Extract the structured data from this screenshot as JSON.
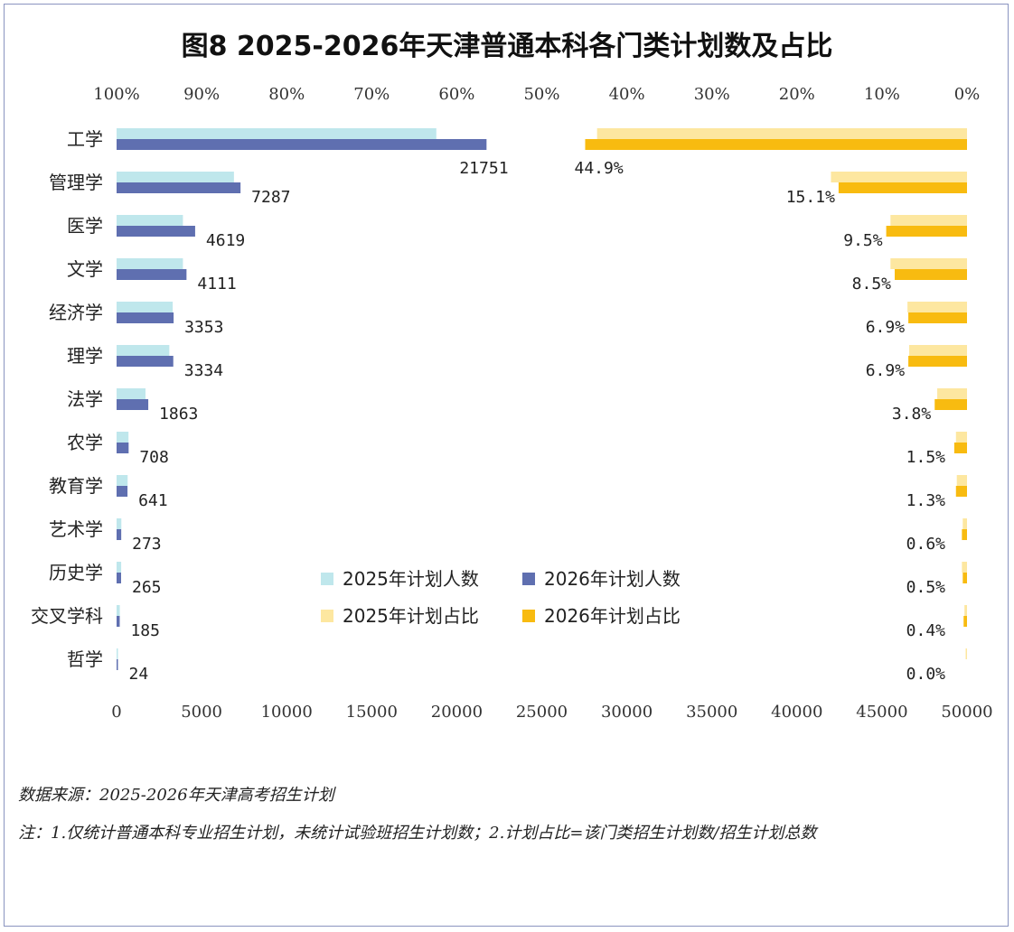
{
  "title": "图8  2025-2026年天津普通本科各门类计划数及占比",
  "source_note": "数据来源：2025-2026年天津高考招生计划",
  "footnote": "注：1.仅统计普通本科专业招生计划，未统计试验班招生计划数；2.计划占比=该门类招生计划数/招生计划总数",
  "colors": {
    "plan_2025": "#bfe7ec",
    "plan_2026": "#5f6fb0",
    "share_2025": "#fde7a0",
    "share_2026": "#f8bb10"
  },
  "chart_data": {
    "type": "bar",
    "orientation": "horizontal",
    "categories": [
      "工学",
      "管理学",
      "医学",
      "文学",
      "经济学",
      "理学",
      "法学",
      "农学",
      "教育学",
      "艺术学",
      "历史学",
      "交叉学科",
      "哲学"
    ],
    "series": [
      {
        "name": "2025年计划人数",
        "axis": "bottom",
        "values": [
          18800,
          6900,
          3900,
          3900,
          3300,
          3100,
          1700,
          700,
          650,
          280,
          270,
          190,
          30
        ]
      },
      {
        "name": "2026年计划人数",
        "axis": "bottom",
        "values": [
          21751,
          7287,
          4619,
          4111,
          3353,
          3334,
          1863,
          708,
          641,
          273,
          265,
          185,
          24
        ],
        "labels": [
          "21751",
          "7287",
          "4619",
          "4111",
          "3353",
          "3334",
          "1863",
          "708",
          "641",
          "273",
          "265",
          "185",
          "24"
        ]
      },
      {
        "name": "2025年计划占比",
        "axis": "top",
        "values": [
          43.5,
          16.0,
          9.0,
          9.0,
          7.0,
          6.8,
          3.5,
          1.3,
          1.2,
          0.5,
          0.6,
          0.3,
          0.1
        ]
      },
      {
        "name": "2026年计划占比",
        "axis": "top",
        "values": [
          44.9,
          15.1,
          9.5,
          8.5,
          6.9,
          6.9,
          3.8,
          1.5,
          1.3,
          0.6,
          0.5,
          0.4,
          0.0
        ],
        "labels": [
          "44.9%",
          "15.1%",
          "9.5%",
          "8.5%",
          "6.9%",
          "6.9%",
          "3.8%",
          "1.5%",
          "1.3%",
          "0.6%",
          "0.5%",
          "0.4%",
          "0.0%"
        ]
      }
    ],
    "x_bottom": {
      "range": [
        0,
        50000
      ],
      "ticks": [
        "0",
        "5000",
        "10000",
        "15000",
        "20000",
        "25000",
        "30000",
        "35000",
        "40000",
        "45000",
        "50000"
      ]
    },
    "x_top": {
      "range": [
        0,
        100
      ],
      "reversed": true,
      "ticks": [
        "100%",
        "90%",
        "80%",
        "70%",
        "60%",
        "50%",
        "40%",
        "30%",
        "20%",
        "10%",
        "0%"
      ]
    },
    "legend": {
      "position": "center",
      "entries": [
        "2025年计划人数",
        "2026年计划人数",
        "2025年计划占比",
        "2026年计划占比"
      ]
    },
    "grid": false
  }
}
